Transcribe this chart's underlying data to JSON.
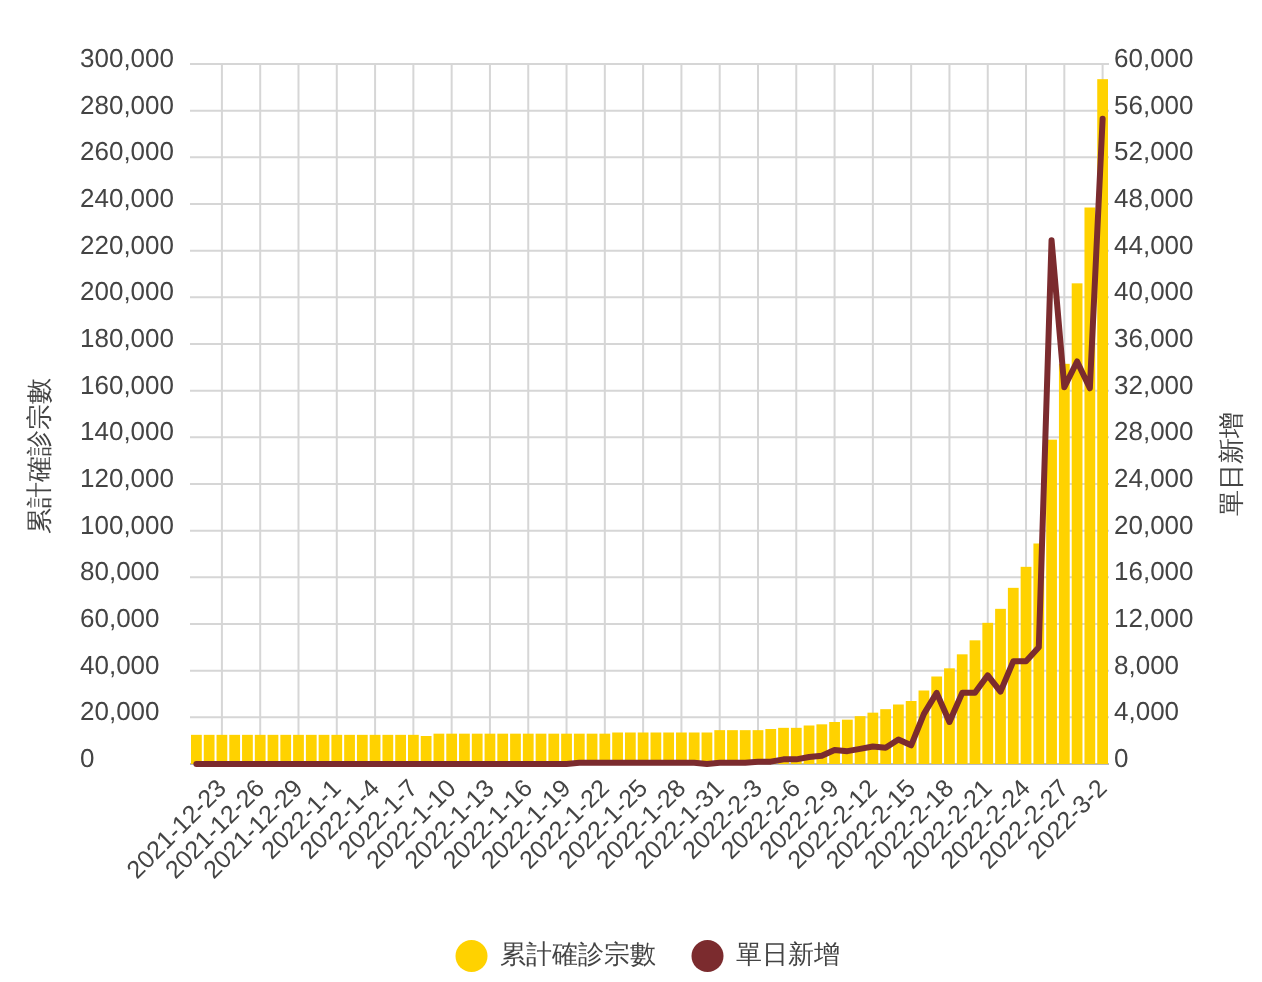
{
  "chart_data": {
    "type": "bar",
    "categories": [
      null,
      null,
      "2021-12-23",
      null,
      null,
      "2021-12-26",
      null,
      null,
      "2021-12-29",
      null,
      null,
      "2022-1-1",
      null,
      null,
      "2022-1-4",
      null,
      null,
      "2022-1-7",
      null,
      null,
      "2022-1-10",
      null,
      null,
      "2022-1-13",
      null,
      null,
      "2022-1-16",
      null,
      null,
      "2022-1-19",
      null,
      null,
      "2022-1-22",
      null,
      null,
      "2022-1-25",
      null,
      null,
      "2022-1-28",
      null,
      null,
      "2022-1-31",
      null,
      null,
      "2022-2-3",
      null,
      null,
      "2022-2-6",
      null,
      null,
      "2022-2-9",
      null,
      null,
      "2022-2-12",
      null,
      null,
      "2022-2-15",
      null,
      null,
      "2022-2-18",
      null,
      null,
      "2022-2-21",
      null,
      null,
      "2022-2-24",
      null,
      null,
      "2022-2-27",
      null,
      null,
      "2022-3-2"
    ],
    "series": [
      {
        "name": "累計確診宗數",
        "color": "#ffd200",
        "values": [
          12500,
          12500,
          12500,
          12500,
          12500,
          12500,
          12500,
          12500,
          12500,
          12500,
          12500,
          12500,
          12500,
          12500,
          12500,
          12500,
          12500,
          12500,
          12000,
          13000,
          13000,
          13000,
          13000,
          13000,
          13000,
          13000,
          13000,
          13000,
          13000,
          13000,
          13000,
          13000,
          13000,
          13500,
          13500,
          13500,
          13500,
          13500,
          13500,
          13500,
          13500,
          14500,
          14500,
          14500,
          14500,
          15000,
          15500,
          15500,
          16500,
          17000,
          18000,
          19000,
          20500,
          22000,
          23500,
          25500,
          27000,
          31500,
          37500,
          41000,
          47000,
          53000,
          60500,
          66500,
          75500,
          84500,
          94500,
          139000,
          171500,
          206000,
          238500,
          293500
        ]
      },
      {
        "name": "單日新增",
        "type": "line",
        "axis": "y2",
        "color": "#7b2b2e",
        "values": [
          0,
          0,
          0,
          0,
          0,
          0,
          0,
          0,
          0,
          0,
          0,
          0,
          0,
          0,
          0,
          0,
          0,
          0,
          0,
          0,
          0,
          0,
          0,
          0,
          0,
          0,
          0,
          0,
          0,
          0,
          100,
          100,
          100,
          100,
          100,
          100,
          100,
          100,
          100,
          100,
          0,
          100,
          100,
          100,
          200,
          200,
          400,
          400,
          600,
          700,
          1200,
          1100,
          1300,
          1500,
          1400,
          2100,
          1600,
          4300,
          6100,
          3600,
          6100,
          6100,
          7600,
          6200,
          8800,
          8800,
          10000,
          44900,
          32300,
          34500,
          32200,
          55300
        ]
      }
    ],
    "ylabel": "累計確診宗數",
    "y2label": "單日新增",
    "ylim": [
      0,
      300000
    ],
    "yticks": [
      {
        "value": 0,
        "label": "0"
      },
      {
        "value": 20000,
        "label": "20,000"
      },
      {
        "value": 40000,
        "label": "40,000"
      },
      {
        "value": 60000,
        "label": "60,000"
      },
      {
        "value": 80000,
        "label": "80,000"
      },
      {
        "value": 100000,
        "label": "100,000"
      },
      {
        "value": 120000,
        "label": "120,000"
      },
      {
        "value": 140000,
        "label": "140,000"
      },
      {
        "value": 160000,
        "label": "160,000"
      },
      {
        "value": 180000,
        "label": "180,000"
      },
      {
        "value": 200000,
        "label": "200,000"
      },
      {
        "value": 220000,
        "label": "220,000"
      },
      {
        "value": 240000,
        "label": "240,000"
      },
      {
        "value": 260000,
        "label": "260,000"
      },
      {
        "value": 280000,
        "label": "280,000"
      },
      {
        "value": 300000,
        "label": "300,000"
      }
    ],
    "y2lim": [
      0,
      60000
    ],
    "y2ticks": [
      {
        "value": 0,
        "label": "0"
      },
      {
        "value": 4000,
        "label": "4,000"
      },
      {
        "value": 8000,
        "label": "8,000"
      },
      {
        "value": 12000,
        "label": "12,000"
      },
      {
        "value": 16000,
        "label": "16,000"
      },
      {
        "value": 20000,
        "label": "20,000"
      },
      {
        "value": 24000,
        "label": "24,000"
      },
      {
        "value": 28000,
        "label": "28,000"
      },
      {
        "value": 32000,
        "label": "32,000"
      },
      {
        "value": 36000,
        "label": "36,000"
      },
      {
        "value": 40000,
        "label": "40,000"
      },
      {
        "value": 44000,
        "label": "44,000"
      },
      {
        "value": 48000,
        "label": "48,000"
      },
      {
        "value": 52000,
        "label": "52,000"
      },
      {
        "value": 56000,
        "label": "56,000"
      },
      {
        "value": 60000,
        "label": "60,000"
      }
    ],
    "grid": true,
    "legend": "bottom"
  }
}
